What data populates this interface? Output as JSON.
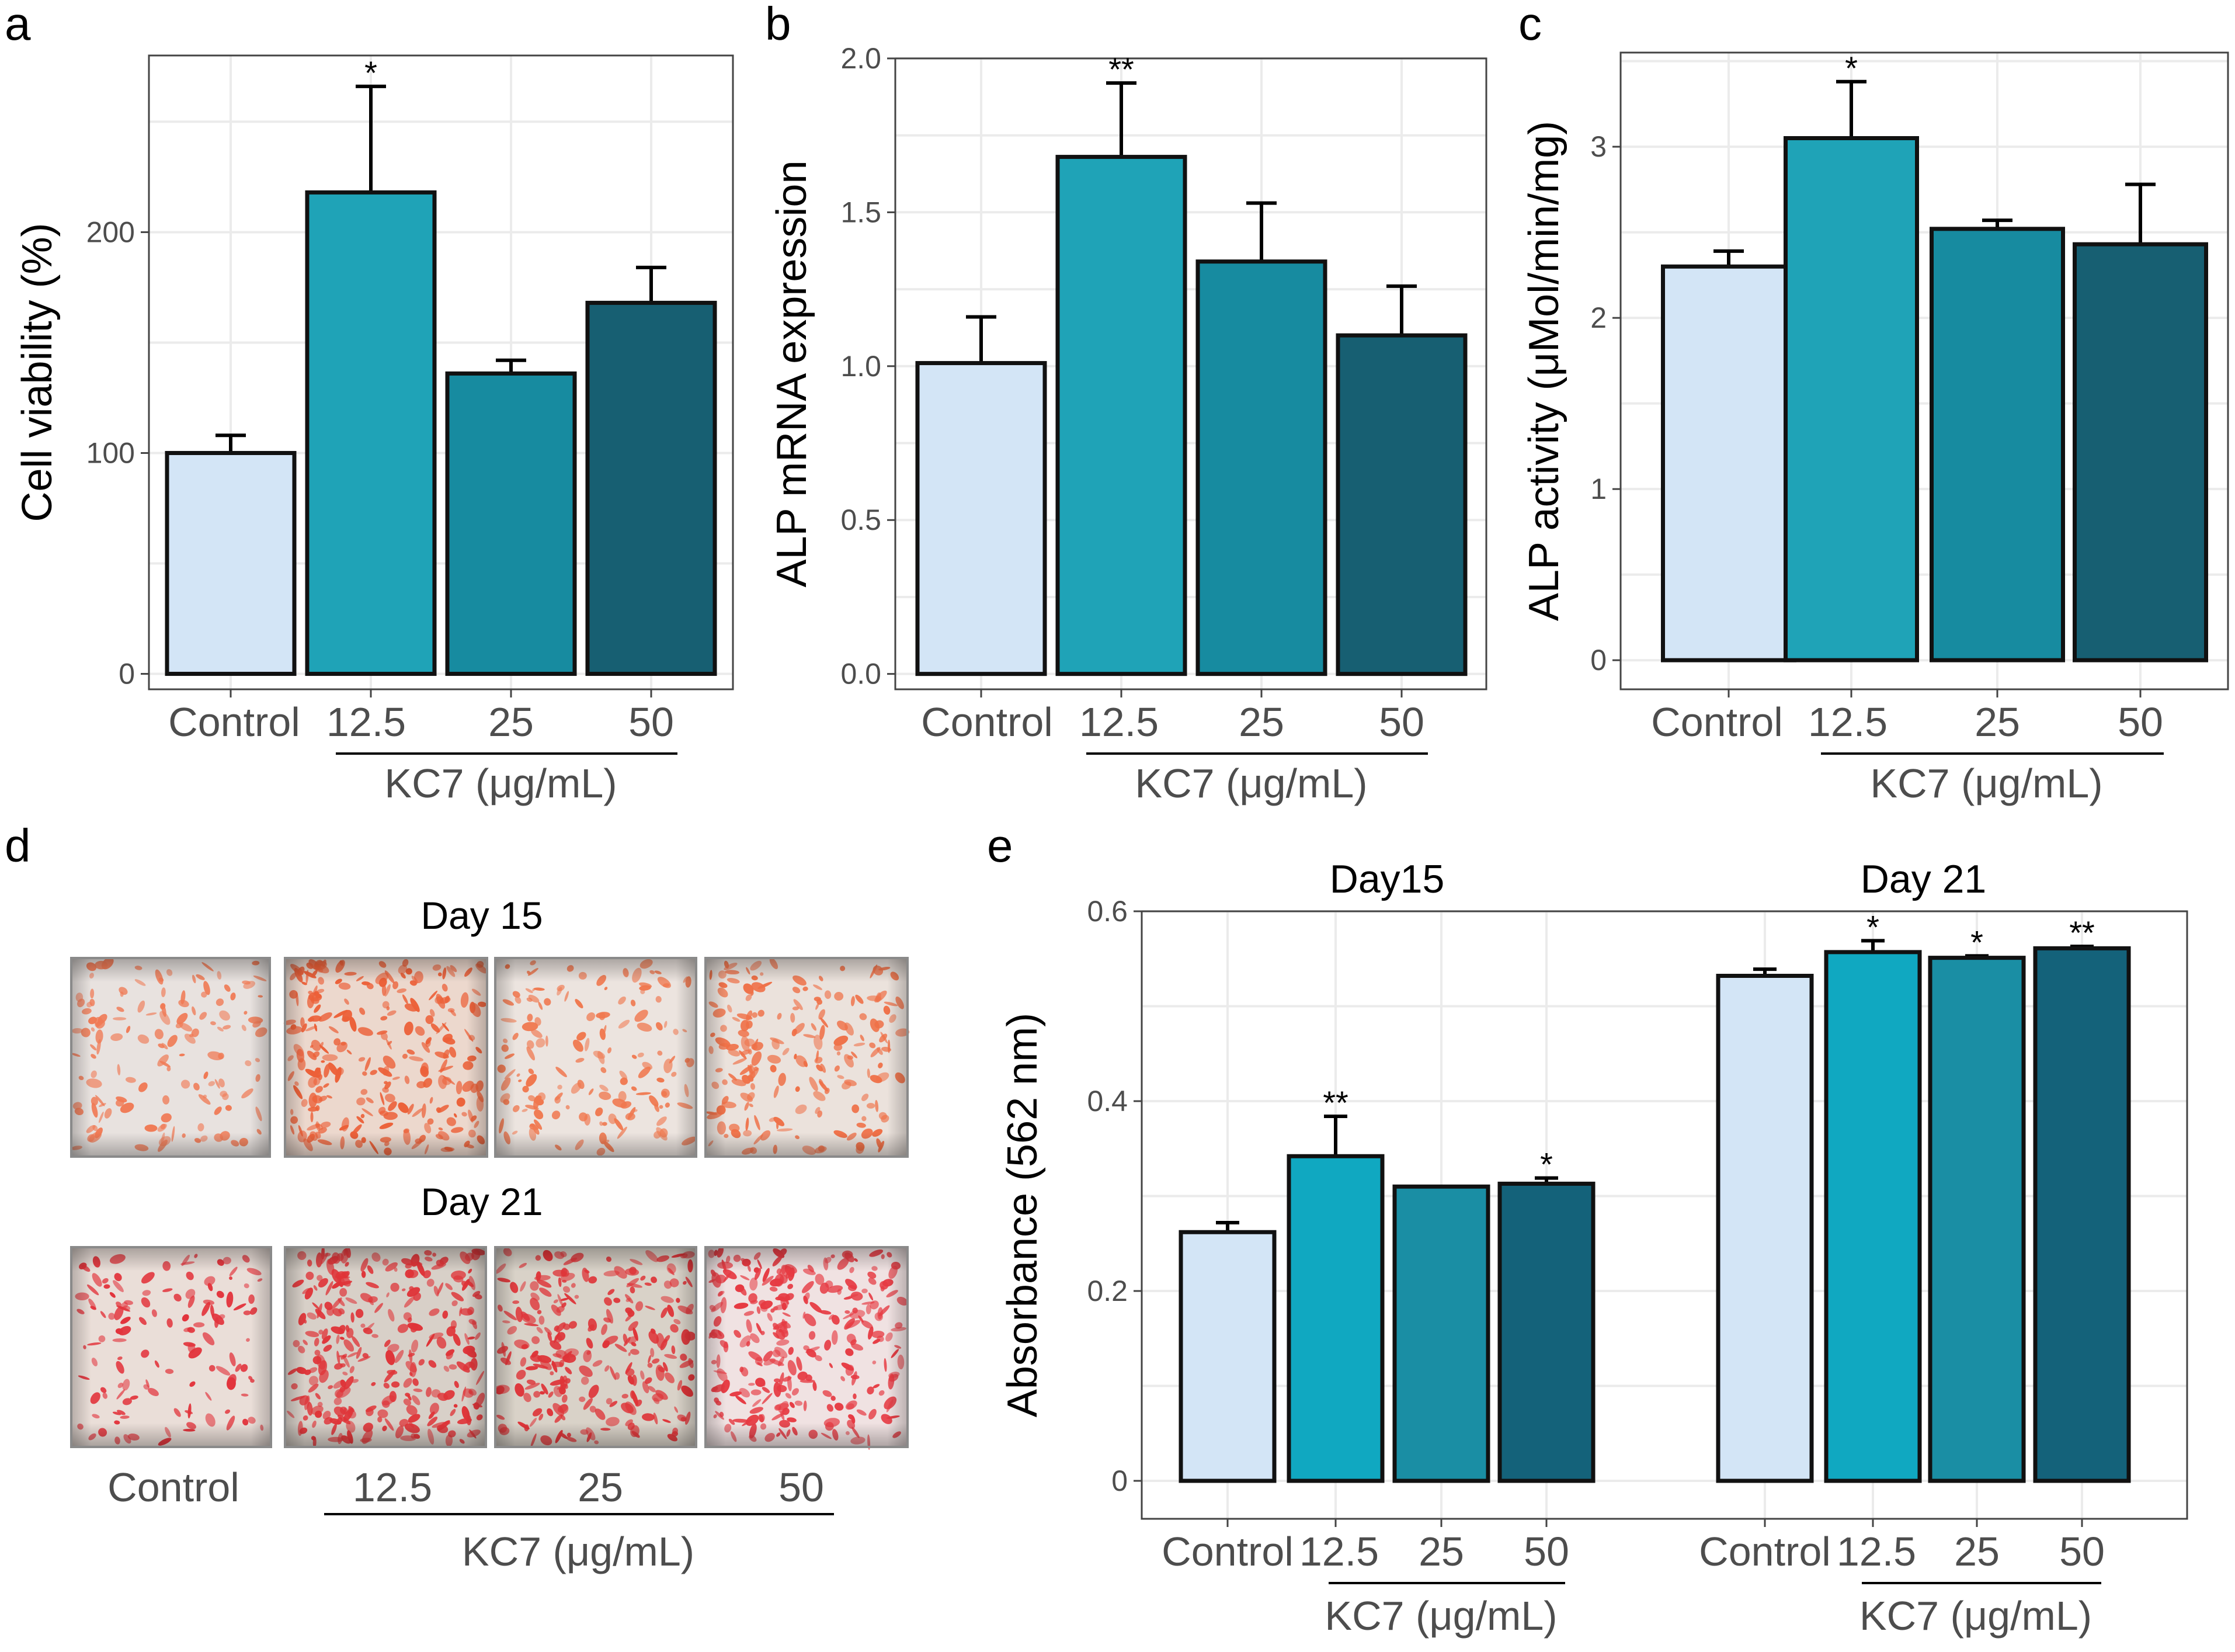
{
  "colors": {
    "control": "#d3e5f6",
    "c12_5": "#1fa3b7",
    "c25": "#178ba0",
    "c50": "#175f72",
    "e_c12_5": "#10a8c1",
    "e_c25": "#1a8ea4",
    "e_c50": "#14627a",
    "grid": "#ebebeb",
    "axis": "#444444",
    "tick_label": "#4d4d4d"
  },
  "panel_letters": {
    "a": "a",
    "b": "b",
    "c": "c",
    "d": "d",
    "e": "e"
  },
  "chart_data": [
    {
      "panel": "a",
      "type": "bar",
      "categories": [
        "Control",
        "12.5",
        "25",
        "50"
      ],
      "values": [
        100,
        218,
        136,
        168
      ],
      "errors": [
        8,
        48,
        6,
        16
      ],
      "significance": [
        "",
        "*",
        "",
        ""
      ],
      "ylabel": "Cell viability (%)",
      "xgroup_label": "KC7 (μg/mL)",
      "ylim": [
        -7,
        280
      ],
      "yticks": [
        0,
        100,
        200
      ]
    },
    {
      "panel": "b",
      "type": "bar",
      "categories": [
        "Control",
        "12.5",
        "25",
        "50"
      ],
      "values": [
        1.01,
        1.68,
        1.34,
        1.1
      ],
      "errors": [
        0.15,
        0.24,
        0.19,
        0.16
      ],
      "significance": [
        "",
        "**",
        "",
        ""
      ],
      "ylabel": "ALP mRNA expression",
      "xgroup_label": "KC7 (μg/mL)",
      "ylim": [
        -0.05,
        2.0
      ],
      "yticks": [
        0.0,
        0.5,
        1.0,
        1.5,
        2.0
      ],
      "ytick_labels": [
        "0.0",
        "0.5",
        "1.0",
        "1.5",
        "2.0"
      ]
    },
    {
      "panel": "c",
      "type": "bar",
      "categories": [
        "Control",
        "12.5",
        "25",
        "50"
      ],
      "values": [
        2.3,
        3.05,
        2.52,
        2.43
      ],
      "errors": [
        0.09,
        0.33,
        0.05,
        0.35
      ],
      "significance": [
        "",
        "*",
        "",
        ""
      ],
      "ylabel": "ALP activity (μMol/min/mg)",
      "xgroup_label": "KC7 (μg/mL)",
      "ylim": [
        -0.17,
        3.55
      ],
      "yticks": [
        0,
        1,
        2,
        3
      ]
    },
    {
      "panel": "e",
      "type": "bar",
      "groups": [
        {
          "title": "Day15",
          "categories": [
            "Control",
            "12.5",
            "25",
            "50"
          ],
          "values": [
            0.262,
            0.342,
            0.31,
            0.313
          ],
          "errors": [
            0.01,
            0.042,
            0.0,
            0.006
          ],
          "significance": [
            "",
            "**",
            "",
            "*"
          ]
        },
        {
          "title": "Day 21",
          "categories": [
            "Control",
            "12.5",
            "25",
            "50"
          ],
          "values": [
            0.532,
            0.557,
            0.551,
            0.561
          ],
          "errors": [
            0.007,
            0.012,
            0.002,
            0.002
          ],
          "significance": [
            "",
            "*",
            "*",
            "**"
          ]
        }
      ],
      "ylabel": "Absorbance (562 nm)",
      "xgroup_label": "KC7 (μg/mL)",
      "ylim": [
        -0.04,
        0.6
      ],
      "yticks": [
        0,
        0.2,
        0.4,
        0.6
      ],
      "ytick_labels": [
        "0",
        "0.2",
        "0.4",
        "0.6"
      ]
    }
  ],
  "panel_d": {
    "day15_label": "Day 15",
    "day21_label": "Day 21",
    "categories": [
      "Control",
      "12.5",
      "25",
      "50"
    ],
    "xgroup_label": "KC7 (μg/mL)",
    "images": [
      {
        "name": "day15-control",
        "bg": "#e8e2df",
        "dot": "#f07a55",
        "density": 0.55
      },
      {
        "name": "day15-12_5",
        "bg": "#ecd8cd",
        "dot": "#ec6038",
        "density": 1.0
      },
      {
        "name": "day15-25",
        "bg": "#ece4df",
        "dot": "#f0784f",
        "density": 0.6
      },
      {
        "name": "day15-50",
        "bg": "#ebe2dc",
        "dot": "#ef7047",
        "density": 0.75
      },
      {
        "name": "day21-control",
        "bg": "#eaded8",
        "dot": "#e2343c",
        "density": 0.5
      },
      {
        "name": "day21-12_5",
        "bg": "#d8d0c8",
        "dot": "#df3438",
        "density": 1.15
      },
      {
        "name": "day21-25",
        "bg": "#d9d2c8",
        "dot": "#de3438",
        "density": 1.0
      },
      {
        "name": "day21-50",
        "bg": "#f0e2e2",
        "dot": "#e63a42",
        "density": 1.1
      }
    ]
  }
}
